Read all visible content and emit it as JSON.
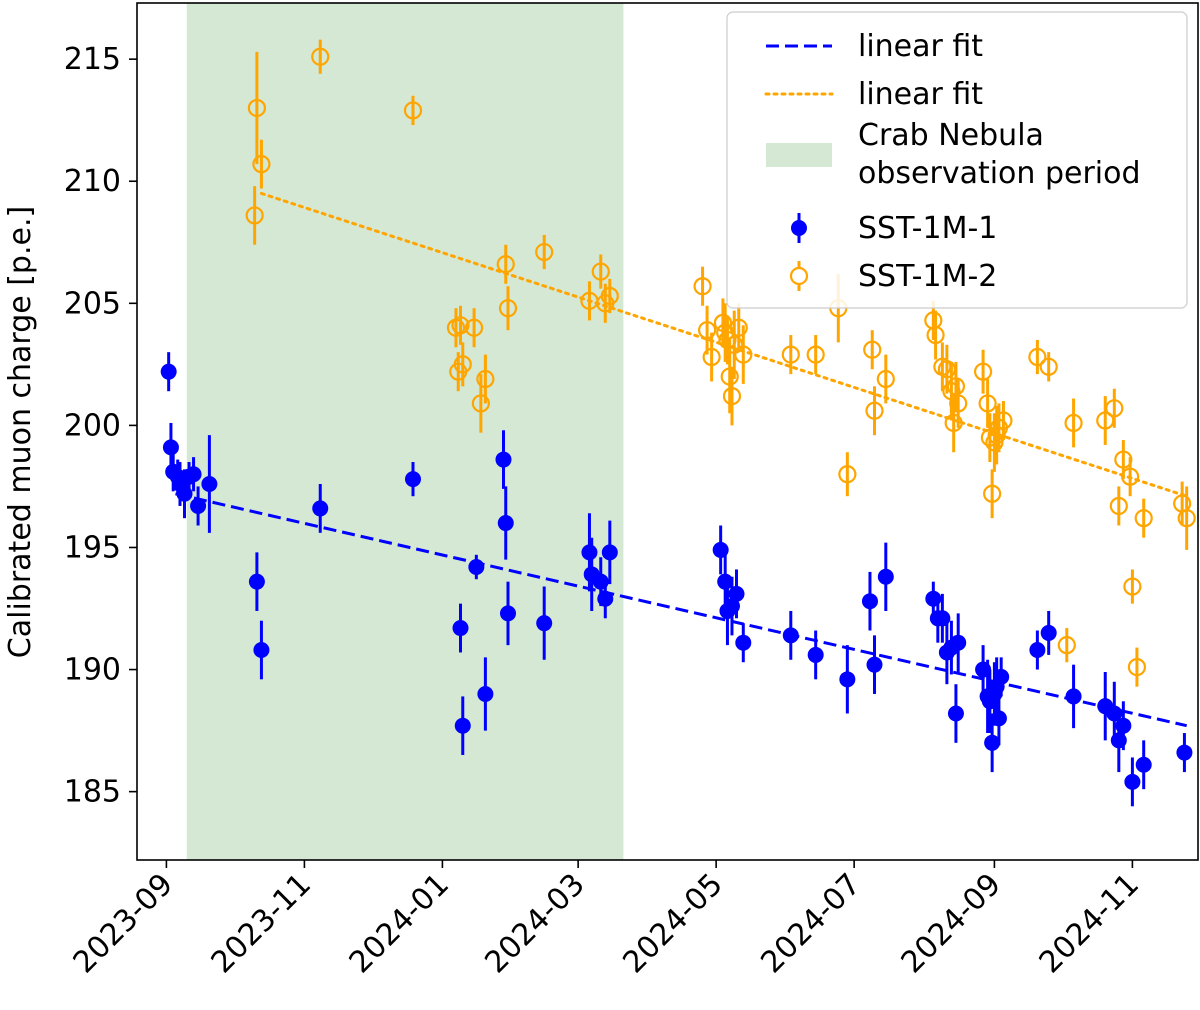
{
  "chart_data": {
    "type": "scatter",
    "title": "",
    "xlabel": "",
    "ylabel": "Calibrated muon charge [p.e.]",
    "ylim": [
      182.2,
      217.3
    ],
    "xlim": [
      "2023-08-19",
      "2024-11-30"
    ],
    "grid": false,
    "legend_location": "top-right",
    "x_ticks": [
      "2023-09",
      "2023-11",
      "2024-01",
      "2024-03",
      "2024-05",
      "2024-07",
      "2024-09",
      "2024-11"
    ],
    "y_ticks": [
      185,
      190,
      195,
      200,
      205,
      210,
      215
    ],
    "shaded_region": {
      "label": "Crab Nebula observation period",
      "label_lines": [
        "Crab Nebula",
        "observation period"
      ],
      "start": "2023-09-10",
      "end": "2024-03-21",
      "color": "#d5e8d4"
    },
    "fits": [
      {
        "label": "linear fit",
        "series": "SST-1M-2",
        "style": "dotted",
        "color": "#ffa500",
        "start": {
          "x": "2023-10-13",
          "y": 209.5
        },
        "end": {
          "x": "2024-11-25",
          "y": 197.1
        }
      },
      {
        "label": "linear fit",
        "series": "SST-1M-1",
        "style": "dashed",
        "color": "#0000ff",
        "start": {
          "x": "2023-09-05",
          "y": 197.2
        },
        "end": {
          "x": "2024-11-25",
          "y": 187.7
        }
      }
    ],
    "series": [
      {
        "name": "SST-1M-1",
        "marker": "filled-circle",
        "color": "#0000ff",
        "points": [
          {
            "x": "2023-09-02",
            "y": 202.2,
            "err": 0.8
          },
          {
            "x": "2023-09-03",
            "y": 199.1,
            "err": 1.0
          },
          {
            "x": "2023-09-04",
            "y": 198.1,
            "err": 0.8
          },
          {
            "x": "2023-09-06",
            "y": 197.9,
            "err": 0.7
          },
          {
            "x": "2023-09-07",
            "y": 197.6,
            "err": 0.9
          },
          {
            "x": "2023-09-09",
            "y": 197.2,
            "err": 1.0
          },
          {
            "x": "2023-09-11",
            "y": 197.9,
            "err": 0.6
          },
          {
            "x": "2023-09-13",
            "y": 198.0,
            "err": 0.7
          },
          {
            "x": "2023-09-15",
            "y": 196.7,
            "err": 0.8
          },
          {
            "x": "2023-09-20",
            "y": 197.6,
            "err": 2.0
          },
          {
            "x": "2023-10-11",
            "y": 193.6,
            "err": 1.2
          },
          {
            "x": "2023-10-13",
            "y": 190.8,
            "err": 1.2
          },
          {
            "x": "2023-11-08",
            "y": 196.6,
            "err": 1.0
          },
          {
            "x": "2023-12-19",
            "y": 197.8,
            "err": 0.7
          },
          {
            "x": "2024-01-09",
            "y": 191.7,
            "err": 1.0
          },
          {
            "x": "2024-01-10",
            "y": 187.7,
            "err": 1.2
          },
          {
            "x": "2024-01-16",
            "y": 194.2,
            "err": 0.5
          },
          {
            "x": "2024-01-20",
            "y": 189.0,
            "err": 1.5
          },
          {
            "x": "2024-01-28",
            "y": 198.6,
            "err": 1.2
          },
          {
            "x": "2024-01-29",
            "y": 196.0,
            "err": 1.5
          },
          {
            "x": "2024-01-30",
            "y": 192.3,
            "err": 1.3
          },
          {
            "x": "2024-02-15",
            "y": 191.9,
            "err": 1.5
          },
          {
            "x": "2024-03-06",
            "y": 194.8,
            "err": 1.6
          },
          {
            "x": "2024-03-07",
            "y": 193.9,
            "err": 1.5
          },
          {
            "x": "2024-03-11",
            "y": 193.6,
            "err": 1.0
          },
          {
            "x": "2024-03-13",
            "y": 192.9,
            "err": 0.8
          },
          {
            "x": "2024-03-15",
            "y": 194.8,
            "err": 1.3
          },
          {
            "x": "2024-05-03",
            "y": 194.9,
            "err": 1.0
          },
          {
            "x": "2024-05-05",
            "y": 193.6,
            "err": 1.2
          },
          {
            "x": "2024-05-06",
            "y": 192.4,
            "err": 1.4
          },
          {
            "x": "2024-05-08",
            "y": 192.6,
            "err": 1.2
          },
          {
            "x": "2024-05-10",
            "y": 193.1,
            "err": 1.0
          },
          {
            "x": "2024-05-13",
            "y": 191.1,
            "err": 0.8
          },
          {
            "x": "2024-06-03",
            "y": 191.4,
            "err": 1.0
          },
          {
            "x": "2024-06-14",
            "y": 190.6,
            "err": 1.0
          },
          {
            "x": "2024-06-28",
            "y": 189.6,
            "err": 1.4
          },
          {
            "x": "2024-07-08",
            "y": 192.8,
            "err": 1.2
          },
          {
            "x": "2024-07-10",
            "y": 190.2,
            "err": 1.2
          },
          {
            "x": "2024-07-15",
            "y": 193.8,
            "err": 1.4
          },
          {
            "x": "2024-08-05",
            "y": 192.9,
            "err": 0.7
          },
          {
            "x": "2024-08-07",
            "y": 192.1,
            "err": 1.0
          },
          {
            "x": "2024-08-09",
            "y": 192.1,
            "err": 1.0
          },
          {
            "x": "2024-08-11",
            "y": 190.7,
            "err": 1.3
          },
          {
            "x": "2024-08-13",
            "y": 190.9,
            "err": 1.1
          },
          {
            "x": "2024-08-15",
            "y": 188.2,
            "err": 1.2
          },
          {
            "x": "2024-08-16",
            "y": 191.1,
            "err": 1.2
          },
          {
            "x": "2024-08-27",
            "y": 190.0,
            "err": 1.0
          },
          {
            "x": "2024-08-29",
            "y": 188.9,
            "err": 1.5
          },
          {
            "x": "2024-08-30",
            "y": 188.7,
            "err": 1.3
          },
          {
            "x": "2024-08-31",
            "y": 187.0,
            "err": 1.2
          },
          {
            "x": "2024-09-01",
            "y": 189.0,
            "err": 1.3
          },
          {
            "x": "2024-09-02",
            "y": 189.3,
            "err": 1.2
          },
          {
            "x": "2024-09-03",
            "y": 188.0,
            "err": 1.1
          },
          {
            "x": "2024-09-04",
            "y": 189.7,
            "err": 0.8
          },
          {
            "x": "2024-09-20",
            "y": 190.8,
            "err": 0.8
          },
          {
            "x": "2024-09-25",
            "y": 191.5,
            "err": 0.9
          },
          {
            "x": "2024-10-06",
            "y": 188.9,
            "err": 1.3
          },
          {
            "x": "2024-10-20",
            "y": 188.5,
            "err": 1.4
          },
          {
            "x": "2024-10-24",
            "y": 188.2,
            "err": 1.3
          },
          {
            "x": "2024-10-26",
            "y": 187.1,
            "err": 1.3
          },
          {
            "x": "2024-10-28",
            "y": 187.7,
            "err": 1.0
          },
          {
            "x": "2024-11-01",
            "y": 185.4,
            "err": 1.0
          },
          {
            "x": "2024-11-06",
            "y": 186.1,
            "err": 1.0
          },
          {
            "x": "2024-11-24",
            "y": 186.6,
            "err": 0.8
          }
        ]
      },
      {
        "name": "SST-1M-2",
        "marker": "open-circle",
        "color": "#ffa500",
        "points": [
          {
            "x": "2023-10-10",
            "y": 208.6,
            "err": 1.2
          },
          {
            "x": "2023-10-11",
            "y": 213.0,
            "err": 2.3
          },
          {
            "x": "2023-10-13",
            "y": 210.7,
            "err": 1.0
          },
          {
            "x": "2023-11-08",
            "y": 215.1,
            "err": 0.7
          },
          {
            "x": "2023-12-19",
            "y": 212.9,
            "err": 0.6
          },
          {
            "x": "2024-01-07",
            "y": 204.0,
            "err": 0.8
          },
          {
            "x": "2024-01-08",
            "y": 202.2,
            "err": 0.8
          },
          {
            "x": "2024-01-09",
            "y": 204.1,
            "err": 0.8
          },
          {
            "x": "2024-01-10",
            "y": 202.5,
            "err": 0.9
          },
          {
            "x": "2024-01-15",
            "y": 204.0,
            "err": 0.8
          },
          {
            "x": "2024-01-18",
            "y": 200.9,
            "err": 1.2
          },
          {
            "x": "2024-01-20",
            "y": 201.9,
            "err": 1.0
          },
          {
            "x": "2024-01-29",
            "y": 206.6,
            "err": 0.8
          },
          {
            "x": "2024-01-30",
            "y": 204.8,
            "err": 0.9
          },
          {
            "x": "2024-02-15",
            "y": 207.1,
            "err": 0.7
          },
          {
            "x": "2024-03-06",
            "y": 205.1,
            "err": 0.8
          },
          {
            "x": "2024-03-11",
            "y": 206.3,
            "err": 0.7
          },
          {
            "x": "2024-03-13",
            "y": 205.0,
            "err": 0.8
          },
          {
            "x": "2024-03-15",
            "y": 205.3,
            "err": 0.7
          },
          {
            "x": "2024-04-25",
            "y": 205.7,
            "err": 0.8
          },
          {
            "x": "2024-04-27",
            "y": 203.9,
            "err": 1.0
          },
          {
            "x": "2024-04-29",
            "y": 202.8,
            "err": 1.0
          },
          {
            "x": "2024-05-04",
            "y": 204.2,
            "err": 1.0
          },
          {
            "x": "2024-05-05",
            "y": 203.8,
            "err": 1.2
          },
          {
            "x": "2024-05-06",
            "y": 203.5,
            "err": 1.0
          },
          {
            "x": "2024-05-07",
            "y": 202.0,
            "err": 1.5
          },
          {
            "x": "2024-05-08",
            "y": 201.2,
            "err": 1.2
          },
          {
            "x": "2024-05-09",
            "y": 203.3,
            "err": 1.4
          },
          {
            "x": "2024-05-11",
            "y": 204.0,
            "err": 1.0
          },
          {
            "x": "2024-05-13",
            "y": 202.9,
            "err": 1.2
          },
          {
            "x": "2024-06-03",
            "y": 202.9,
            "err": 0.8
          },
          {
            "x": "2024-06-14",
            "y": 202.9,
            "err": 0.8
          },
          {
            "x": "2024-06-24",
            "y": 204.8,
            "err": 1.4
          },
          {
            "x": "2024-06-28",
            "y": 198.0,
            "err": 0.9
          },
          {
            "x": "2024-07-09",
            "y": 203.1,
            "err": 0.8
          },
          {
            "x": "2024-07-10",
            "y": 200.6,
            "err": 1.0
          },
          {
            "x": "2024-07-15",
            "y": 201.9,
            "err": 1.0
          },
          {
            "x": "2024-08-05",
            "y": 204.3,
            "err": 0.8
          },
          {
            "x": "2024-08-06",
            "y": 203.7,
            "err": 1.0
          },
          {
            "x": "2024-08-09",
            "y": 202.4,
            "err": 1.0
          },
          {
            "x": "2024-08-11",
            "y": 202.3,
            "err": 1.0
          },
          {
            "x": "2024-08-13",
            "y": 201.4,
            "err": 1.2
          },
          {
            "x": "2024-08-14",
            "y": 200.1,
            "err": 1.2
          },
          {
            "x": "2024-08-15",
            "y": 201.6,
            "err": 1.0
          },
          {
            "x": "2024-08-16",
            "y": 200.9,
            "err": 1.0
          },
          {
            "x": "2024-08-27",
            "y": 202.2,
            "err": 0.9
          },
          {
            "x": "2024-08-29",
            "y": 200.9,
            "err": 1.0
          },
          {
            "x": "2024-08-30",
            "y": 199.5,
            "err": 1.0
          },
          {
            "x": "2024-08-31",
            "y": 197.2,
            "err": 1.0
          },
          {
            "x": "2024-09-01",
            "y": 199.3,
            "err": 1.2
          },
          {
            "x": "2024-09-02",
            "y": 199.6,
            "err": 1.2
          },
          {
            "x": "2024-09-03",
            "y": 199.9,
            "err": 1.0
          },
          {
            "x": "2024-09-05",
            "y": 200.2,
            "err": 0.8
          },
          {
            "x": "2024-09-20",
            "y": 202.8,
            "err": 0.7
          },
          {
            "x": "2024-09-25",
            "y": 202.4,
            "err": 0.6
          },
          {
            "x": "2024-10-03",
            "y": 191.0,
            "err": 0.7
          },
          {
            "x": "2024-10-06",
            "y": 200.1,
            "err": 1.0
          },
          {
            "x": "2024-10-20",
            "y": 200.2,
            "err": 1.0
          },
          {
            "x": "2024-10-24",
            "y": 200.7,
            "err": 0.8
          },
          {
            "x": "2024-10-26",
            "y": 196.7,
            "err": 0.8
          },
          {
            "x": "2024-10-28",
            "y": 198.6,
            "err": 0.8
          },
          {
            "x": "2024-10-31",
            "y": 197.9,
            "err": 0.8
          },
          {
            "x": "2024-11-01",
            "y": 193.4,
            "err": 0.7
          },
          {
            "x": "2024-11-03",
            "y": 190.1,
            "err": 0.8
          },
          {
            "x": "2024-11-06",
            "y": 196.2,
            "err": 0.8
          },
          {
            "x": "2024-11-23",
            "y": 196.8,
            "err": 0.9
          },
          {
            "x": "2024-11-25",
            "y": 196.2,
            "err": 1.3
          }
        ]
      }
    ],
    "legend": [
      {
        "label": "linear fit",
        "kind": "dashed-line",
        "color": "#0000ff"
      },
      {
        "label": "linear fit",
        "kind": "dotted-line",
        "color": "#ffa500"
      },
      {
        "label": "Crab Nebula observation period",
        "kind": "patch",
        "color": "#d5e8d4"
      },
      {
        "label": "SST-1M-1",
        "kind": "filled-marker",
        "color": "#0000ff"
      },
      {
        "label": "SST-1M-2",
        "kind": "open-marker",
        "color": "#ffa500"
      }
    ]
  }
}
